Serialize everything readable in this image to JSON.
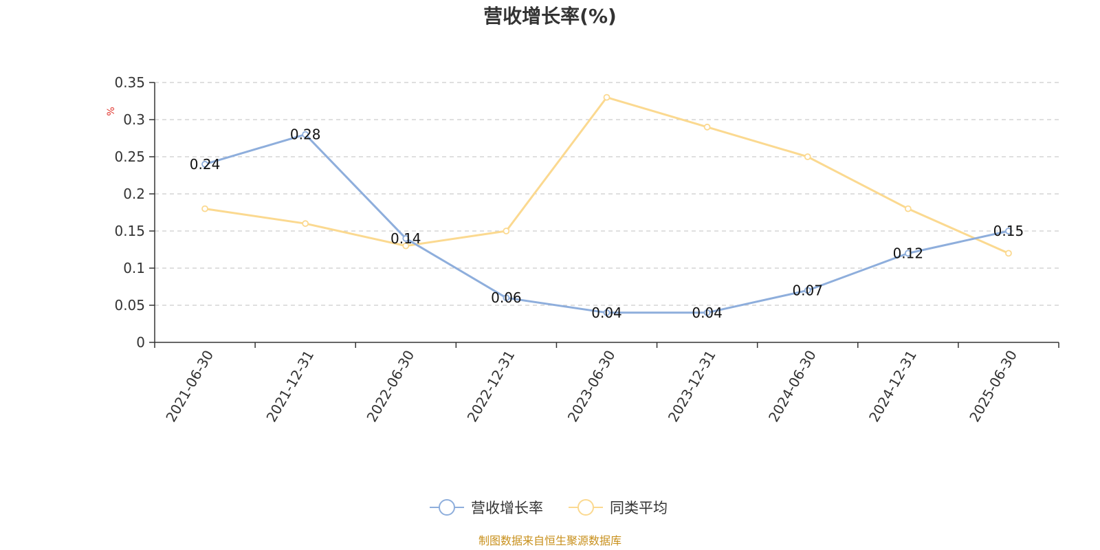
{
  "colors": {
    "series_main": "#8eaedc",
    "series_avg": "#fbd990",
    "unit": "#e0342c",
    "source": "#c8901c",
    "axis": "#333333",
    "grid": "#cccccc"
  },
  "source_note": "制图数据来自恒生聚源数据库",
  "chart_data": {
    "type": "line",
    "title": "营收增长率(%)",
    "ylabel": "%",
    "xlabel": "",
    "ylim": [
      0,
      0.35
    ],
    "yticks": [
      "0",
      "0.05",
      "0.1",
      "0.15",
      "0.2",
      "0.25",
      "0.3",
      "0.35"
    ],
    "grid": true,
    "legend_position": "bottom-center",
    "categories": [
      "2021-06-30",
      "2021-12-31",
      "2022-06-30",
      "2022-12-31",
      "2023-06-30",
      "2023-12-31",
      "2024-06-30",
      "2024-12-31",
      "2025-06-30"
    ],
    "series": [
      {
        "name": "营收增长率",
        "values": [
          0.24,
          0.28,
          0.14,
          0.06,
          0.04,
          0.04,
          0.07,
          0.12,
          0.15
        ],
        "labels": [
          "0.24",
          "0.28",
          "0.14",
          "0.06",
          "0.04",
          "0.04",
          "0.07",
          "0.12",
          "0.15"
        ]
      },
      {
        "name": "同类平均",
        "values": [
          0.18,
          0.16,
          0.13,
          0.15,
          0.33,
          0.29,
          0.25,
          0.18,
          0.12
        ]
      }
    ]
  }
}
